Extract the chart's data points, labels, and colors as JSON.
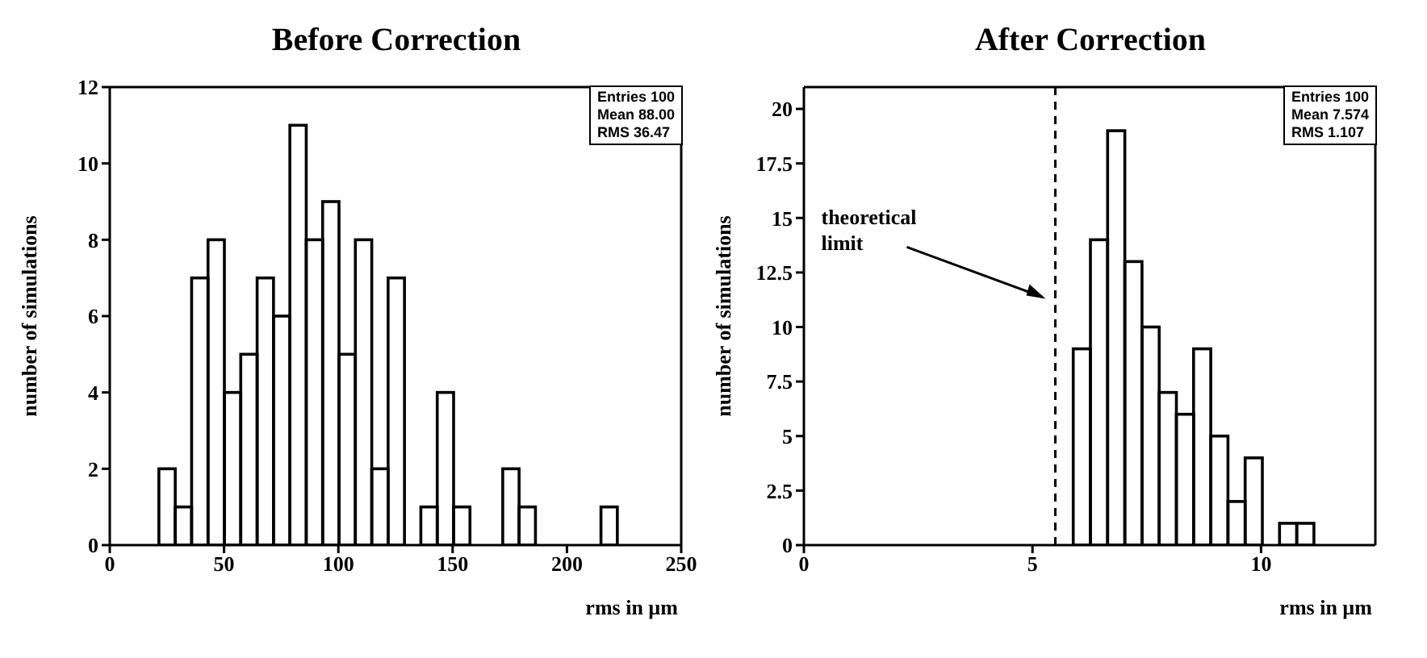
{
  "chart_data": [
    {
      "type": "histogram",
      "title": "Before Correction",
      "xlabel": "rms in µm",
      "ylabel": "number of simulations",
      "bins": [
        21.43,
        28.57,
        35.71,
        42.86,
        50,
        57.14,
        64.29,
        71.43,
        78.57,
        85.71,
        92.86,
        100,
        107.14,
        114.29,
        121.43,
        128.57,
        135.71,
        142.86,
        150,
        157.14,
        164.29,
        171.43,
        178.57,
        185.71,
        192.86,
        200,
        207.14,
        214.29,
        221.43
      ],
      "values": [
        2,
        1,
        7,
        8,
        4,
        5,
        7,
        6,
        11,
        8,
        9,
        5,
        8,
        2,
        7,
        0,
        1,
        4,
        1,
        0,
        0,
        2,
        1,
        0,
        0,
        0,
        0,
        1
      ],
      "color": "#000000",
      "xlim": [
        0,
        250
      ],
      "xticks": [
        0,
        50,
        100,
        150,
        200,
        250
      ],
      "ylim": [
        0,
        12
      ],
      "yticks": [
        0,
        2,
        4,
        6,
        8,
        10,
        12
      ],
      "annotations": [
        "Entries 100",
        "Mean 88.00",
        "RMS 36.47"
      ]
    },
    {
      "type": "histogram",
      "title": "After Correction",
      "xlabel": "rms in µm",
      "ylabel": "number of simulations",
      "bins": [
        5.875,
        6.25,
        6.625,
        7.0,
        7.375,
        7.75,
        8.125,
        8.5,
        8.875,
        9.25,
        9.625,
        10.0,
        10.375,
        10.75,
        11.125
      ],
      "values": [
        9,
        14,
        19,
        13,
        10,
        7,
        6,
        9,
        5,
        2,
        4,
        0,
        1,
        1
      ],
      "color": "#000000",
      "xlim": [
        0,
        12.5
      ],
      "xticks": [
        0,
        5,
        10
      ],
      "ylim": [
        0,
        21
      ],
      "yticks": [
        0,
        2.5,
        5,
        7.5,
        10,
        12.5,
        15,
        17.5,
        20
      ],
      "ref_lines": [
        {
          "axis": "x",
          "value": 5.5,
          "label": "theoretical limit",
          "line_style": "dashed"
        }
      ],
      "annotations": [
        "Entries 100",
        "Mean 7.574",
        "RMS 1.107"
      ]
    }
  ]
}
